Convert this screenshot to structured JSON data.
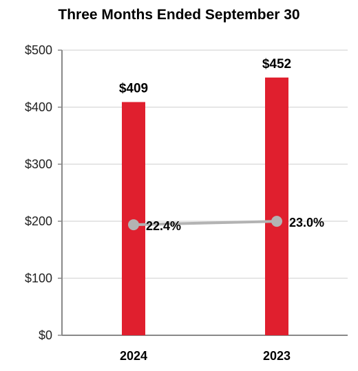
{
  "chart_data": {
    "type": "bar",
    "title": "Three Months Ended September 30",
    "categories": [
      "2024",
      "2023"
    ],
    "ylim": [
      0,
      500
    ],
    "yticks": [
      "$0",
      "$100",
      "$200",
      "$300",
      "$400",
      "$500"
    ],
    "grid": true,
    "series": [
      {
        "type": "bar",
        "values": [
          409,
          452
        ],
        "labels": [
          "$409",
          "$452"
        ]
      },
      {
        "type": "line",
        "values": [
          22.4,
          23.0
        ],
        "labels": [
          "22.4%",
          "23.0%"
        ]
      }
    ],
    "colors": {
      "bar": "#e01f2e",
      "line": "#b3b3b3",
      "grid": "#dddddd",
      "axis": "#888888"
    }
  }
}
